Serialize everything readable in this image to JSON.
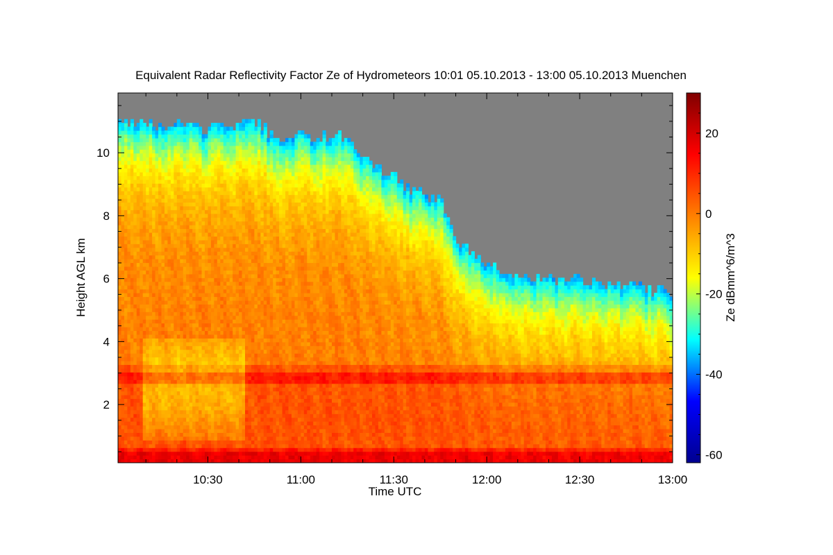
{
  "chart_data": {
    "type": "heatmap",
    "title": "Equivalent Radar Reflectivity Factor Ze of Hydrometeors   10:01 05.10.2013 - 13:00 05.10.2013 Muenchen",
    "xlabel": "Time UTC",
    "ylabel": "Height AGL km",
    "colorbar_label": "Ze dBmm^6/m^3",
    "x_range": [
      "10:01",
      "13:00"
    ],
    "x_ticks": [
      "10:30",
      "11:00",
      "11:30",
      "12:00",
      "12:30",
      "13:00"
    ],
    "x_tick_minutes": [
      30,
      60,
      90,
      120,
      150,
      180
    ],
    "ylim": [
      0.15,
      11.9
    ],
    "y_ticks": [
      2,
      4,
      6,
      8,
      10
    ],
    "colorbar_range": [
      -62,
      30
    ],
    "colorbar_ticks": [
      -60,
      -40,
      -20,
      0,
      20
    ],
    "colormap": [
      "#00008f",
      "#0000ff",
      "#00ffff",
      "#ffff00",
      "#ff8000",
      "#ff0000",
      "#800000"
    ],
    "no_signal_color": "#808080",
    "echo_top_km": [
      {
        "t": "10:01",
        "h": 10.95
      },
      {
        "t": "10:10",
        "h": 10.9
      },
      {
        "t": "10:15",
        "h": 10.75
      },
      {
        "t": "10:20",
        "h": 10.85
      },
      {
        "t": "10:25",
        "h": 10.8
      },
      {
        "t": "10:30",
        "h": 10.7
      },
      {
        "t": "10:40",
        "h": 10.8
      },
      {
        "t": "10:45",
        "h": 10.9
      },
      {
        "t": "10:50",
        "h": 10.6
      },
      {
        "t": "10:55",
        "h": 10.3
      },
      {
        "t": "11:00",
        "h": 10.5
      },
      {
        "t": "11:05",
        "h": 10.45
      },
      {
        "t": "11:10",
        "h": 10.45
      },
      {
        "t": "11:15",
        "h": 10.4
      },
      {
        "t": "11:20",
        "h": 9.9
      },
      {
        "t": "11:25",
        "h": 9.4
      },
      {
        "t": "11:30",
        "h": 9.2
      },
      {
        "t": "11:35",
        "h": 8.8
      },
      {
        "t": "11:40",
        "h": 8.6
      },
      {
        "t": "11:45",
        "h": 8.5
      },
      {
        "t": "11:50",
        "h": 7.2
      },
      {
        "t": "11:55",
        "h": 6.8
      },
      {
        "t": "12:00",
        "h": 6.5
      },
      {
        "t": "12:10",
        "h": 6.0
      },
      {
        "t": "12:20",
        "h": 5.95
      },
      {
        "t": "12:30",
        "h": 5.9
      },
      {
        "t": "12:40",
        "h": 5.8
      },
      {
        "t": "12:50",
        "h": 5.65
      },
      {
        "t": "13:00",
        "h": 5.5
      }
    ],
    "bright_band_km": 2.8,
    "surface_layer_km": 0.3
  }
}
